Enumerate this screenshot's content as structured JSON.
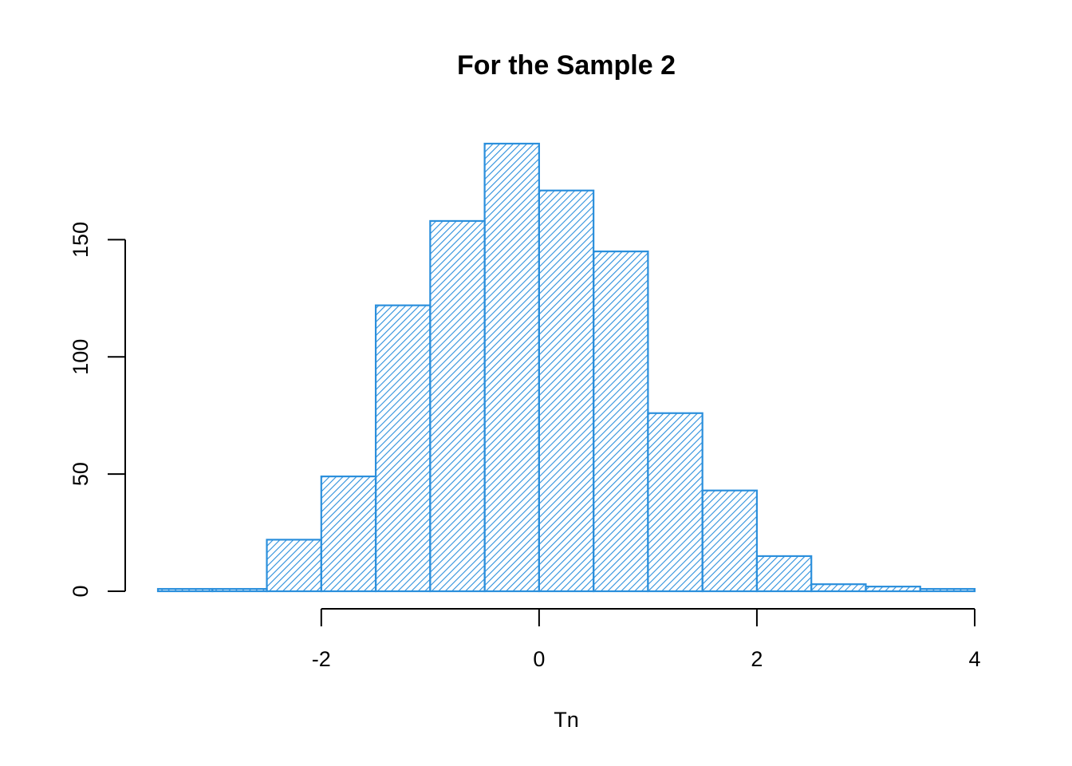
{
  "chart_data": {
    "type": "bar",
    "subtype": "histogram",
    "title": "For the Sample 2",
    "xlabel": "Tn",
    "ylabel": "",
    "bin_edges": [
      -3.5,
      -3.0,
      -2.5,
      -2.0,
      -1.5,
      -1.0,
      -0.5,
      0.0,
      0.5,
      1.0,
      1.5,
      2.0,
      2.5,
      3.0,
      3.5,
      4.0
    ],
    "counts": [
      1,
      1,
      22,
      49,
      122,
      158,
      191,
      171,
      145,
      76,
      43,
      15,
      3,
      2,
      1
    ],
    "xlim": [
      -3.5,
      4.0
    ],
    "ylim": [
      0,
      191
    ],
    "x_ticks": [
      -2,
      0,
      2,
      4
    ],
    "x_tick_labels": [
      "-2",
      "0",
      "2",
      "4"
    ],
    "y_ticks": [
      0,
      50,
      100,
      150
    ],
    "y_tick_labels": [
      "0",
      "50",
      "100",
      "150"
    ],
    "fill_pattern": "diagonal-hatch",
    "bar_color": "#2b8fdc",
    "grid": false,
    "legend": "none"
  }
}
